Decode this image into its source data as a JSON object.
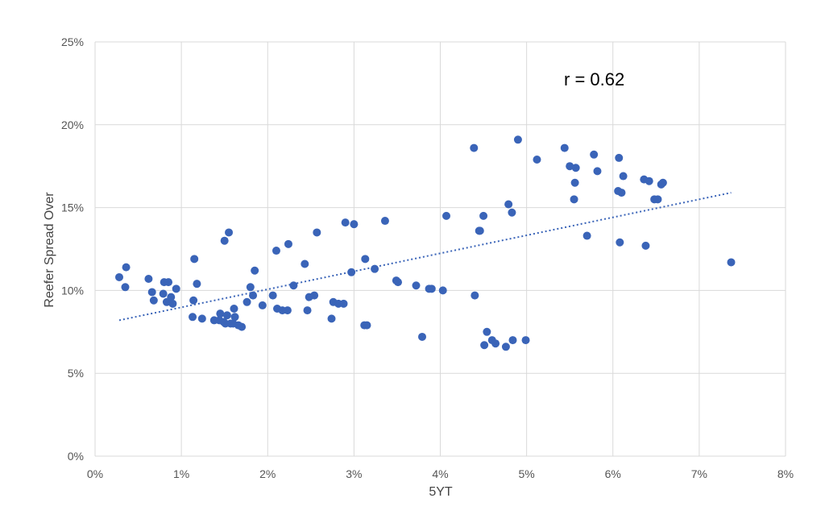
{
  "chart_data": {
    "type": "scatter",
    "xlabel": "5YT",
    "ylabel": "Reefer Spread Over",
    "xlim": [
      0,
      8
    ],
    "ylim": [
      0,
      25
    ],
    "x_ticks": [
      0,
      1,
      2,
      3,
      4,
      5,
      6,
      7,
      8
    ],
    "y_ticks": [
      0,
      5,
      10,
      15,
      20,
      25
    ],
    "x_tick_labels": [
      "0%",
      "1%",
      "2%",
      "3%",
      "4%",
      "5%",
      "6%",
      "7%",
      "8%"
    ],
    "y_tick_labels": [
      "0%",
      "5%",
      "10%",
      "15%",
      "20%",
      "25%"
    ],
    "grid": true,
    "annotation": "r = 0.62",
    "colors": {
      "points": "#3a64b8",
      "trendline": "#3a64b8",
      "grid": "#d9d9d9"
    },
    "trendline": {
      "style": "dotted",
      "x": [
        0.28,
        7.37
      ],
      "y": [
        8.2,
        15.9
      ]
    },
    "points": [
      [
        0.28,
        10.8
      ],
      [
        0.35,
        10.2
      ],
      [
        0.36,
        11.4
      ],
      [
        0.62,
        10.7
      ],
      [
        0.66,
        9.9
      ],
      [
        0.68,
        9.4
      ],
      [
        0.79,
        9.8
      ],
      [
        0.8,
        10.5
      ],
      [
        0.83,
        9.3
      ],
      [
        0.85,
        10.5
      ],
      [
        0.88,
        9.6
      ],
      [
        0.9,
        9.2
      ],
      [
        0.94,
        10.1
      ],
      [
        1.13,
        8.4
      ],
      [
        1.14,
        9.4
      ],
      [
        1.15,
        11.9
      ],
      [
        1.18,
        10.4
      ],
      [
        1.24,
        8.3
      ],
      [
        1.38,
        8.2
      ],
      [
        1.44,
        8.2
      ],
      [
        1.45,
        8.6
      ],
      [
        1.49,
        8.1
      ],
      [
        1.5,
        13.0
      ],
      [
        1.51,
        8.0
      ],
      [
        1.53,
        8.5
      ],
      [
        1.55,
        13.5
      ],
      [
        1.57,
        8.0
      ],
      [
        1.6,
        8.0
      ],
      [
        1.61,
        8.9
      ],
      [
        1.62,
        8.4
      ],
      [
        1.66,
        7.9
      ],
      [
        1.7,
        7.8
      ],
      [
        1.76,
        9.3
      ],
      [
        1.8,
        10.2
      ],
      [
        1.83,
        9.7
      ],
      [
        1.85,
        11.2
      ],
      [
        1.94,
        9.1
      ],
      [
        2.06,
        9.7
      ],
      [
        2.1,
        12.4
      ],
      [
        2.11,
        8.9
      ],
      [
        2.17,
        8.8
      ],
      [
        2.23,
        8.8
      ],
      [
        2.24,
        12.8
      ],
      [
        2.3,
        10.3
      ],
      [
        2.43,
        11.6
      ],
      [
        2.46,
        8.8
      ],
      [
        2.48,
        9.6
      ],
      [
        2.54,
        9.7
      ],
      [
        2.57,
        13.5
      ],
      [
        2.74,
        8.3
      ],
      [
        2.76,
        9.3
      ],
      [
        2.82,
        9.2
      ],
      [
        2.88,
        9.2
      ],
      [
        2.9,
        14.1
      ],
      [
        2.97,
        11.1
      ],
      [
        3.0,
        14.0
      ],
      [
        3.12,
        7.9
      ],
      [
        3.13,
        11.9
      ],
      [
        3.15,
        7.9
      ],
      [
        3.24,
        11.3
      ],
      [
        3.36,
        14.2
      ],
      [
        3.49,
        10.6
      ],
      [
        3.51,
        10.5
      ],
      [
        3.72,
        10.3
      ],
      [
        3.79,
        7.2
      ],
      [
        3.87,
        10.1
      ],
      [
        3.9,
        10.1
      ],
      [
        4.03,
        10.0
      ],
      [
        4.07,
        14.5
      ],
      [
        4.39,
        18.6
      ],
      [
        4.4,
        9.7
      ],
      [
        4.45,
        13.6
      ],
      [
        4.46,
        13.6
      ],
      [
        4.5,
        14.5
      ],
      [
        4.51,
        6.7
      ],
      [
        4.54,
        7.5
      ],
      [
        4.6,
        7.0
      ],
      [
        4.64,
        6.8
      ],
      [
        4.76,
        6.6
      ],
      [
        4.79,
        15.2
      ],
      [
        4.83,
        14.7
      ],
      [
        4.84,
        7.0
      ],
      [
        4.9,
        19.1
      ],
      [
        4.99,
        7.0
      ],
      [
        5.12,
        17.9
      ],
      [
        5.44,
        18.6
      ],
      [
        5.5,
        17.5
      ],
      [
        5.55,
        15.5
      ],
      [
        5.56,
        16.5
      ],
      [
        5.57,
        17.4
      ],
      [
        5.7,
        13.3
      ],
      [
        5.78,
        18.2
      ],
      [
        5.82,
        17.2
      ],
      [
        6.06,
        16.0
      ],
      [
        6.07,
        18.0
      ],
      [
        6.08,
        12.9
      ],
      [
        6.1,
        15.9
      ],
      [
        6.12,
        16.9
      ],
      [
        6.36,
        16.7
      ],
      [
        6.38,
        12.7
      ],
      [
        6.42,
        16.6
      ],
      [
        6.48,
        15.5
      ],
      [
        6.52,
        15.5
      ],
      [
        6.56,
        16.4
      ],
      [
        6.58,
        16.5
      ],
      [
        7.37,
        11.7
      ]
    ]
  }
}
